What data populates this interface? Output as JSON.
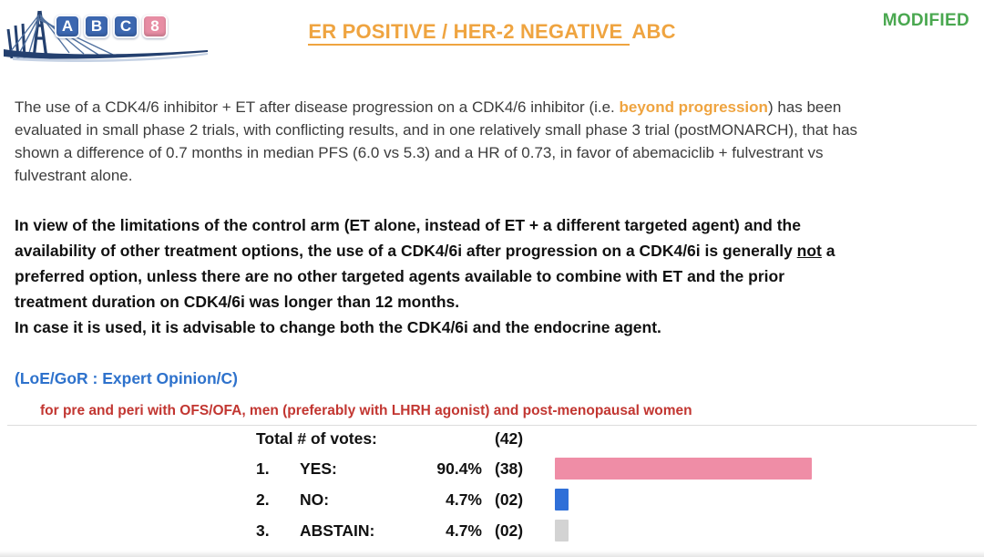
{
  "header": {
    "logo": {
      "tiles": [
        {
          "char": "A",
          "color": "#3c67b0"
        },
        {
          "char": "B",
          "color": "#3c67b0"
        },
        {
          "char": "C",
          "color": "#3c67b0"
        },
        {
          "char": "8",
          "color": "#e78da4"
        }
      ]
    },
    "title": {
      "underlined_part": "ER POSITIVE / HER-2 NEGATIVE",
      "rest": "ABC",
      "color": "#efa440"
    },
    "modified_label": "MODIFIED",
    "modified_color": "#4aa850"
  },
  "paragraph1": {
    "part1": "The use of a CDK4/6 inhibitor + ET after disease progression on a CDK4/6 inhibitor (i.e. ",
    "highlight": "beyond progression",
    "highlight_color": "#efa440",
    "part2": ") has been\nevaluated in small phase 2 trials, with conflicting results, and in one relatively small phase 3 trial (postMONARCH), that has\nshown a difference of 0.7 months in median PFS (6.0 vs 5.3) and a HR of 0.73, in favor of abemaciclib + fulvestrant vs\nfulvestrant alone."
  },
  "paragraph2": {
    "part1": "In view of the limitations of the control arm (ET alone, instead of ET + a different targeted agent) and the\navailability of other treatment options, the use of a CDK4/6i after progression on a CDK4/6i is generally ",
    "underlined_word": "not",
    "part2": " a\npreferred option, unless there are no other targeted agents available to combine with ET and the prior\ntreatment duration on CDK4/6i was longer than 12 months.",
    "line2": "In case it is used, it is advisable to change both the CDK4/6i and the endocrine agent.",
    "loe_gor": "(LoE/GoR : Expert Opinion/C)",
    "loe_color": "#2e72cc"
  },
  "population_note": {
    "text": "for pre and peri with OFS/OFA, men (preferably with LHRH agonist) and post-menopausal women",
    "color": "#c23631"
  },
  "votes": {
    "total_label": "Total # of votes:",
    "total_count": "(42)",
    "rows": [
      {
        "rank": "1.",
        "label": "YES:",
        "pct": "90.4%",
        "count": "(38)",
        "value": 90.4,
        "color": "#ef8da6"
      },
      {
        "rank": "2.",
        "label": "NO:",
        "pct": "4.7%",
        "count": "(02)",
        "value": 4.7,
        "color": "#2f6fd8"
      },
      {
        "rank": "3.",
        "label": "ABSTAIN:",
        "pct": "4.7%",
        "count": "(02)",
        "value": 4.7,
        "color": "#d3d3d3"
      }
    ]
  },
  "chart_data": {
    "type": "bar",
    "orientation": "horizontal",
    "title": "Total # of votes: (42)",
    "categories": [
      "YES",
      "NO",
      "ABSTAIN"
    ],
    "values": [
      90.4,
      4.7,
      4.7
    ],
    "counts": [
      38,
      2,
      2
    ],
    "total_votes": 42,
    "colors": [
      "#ef8da6",
      "#2f6fd8",
      "#d3d3d3"
    ],
    "xlim": [
      0,
      100
    ],
    "grid": false,
    "legend": false
  }
}
